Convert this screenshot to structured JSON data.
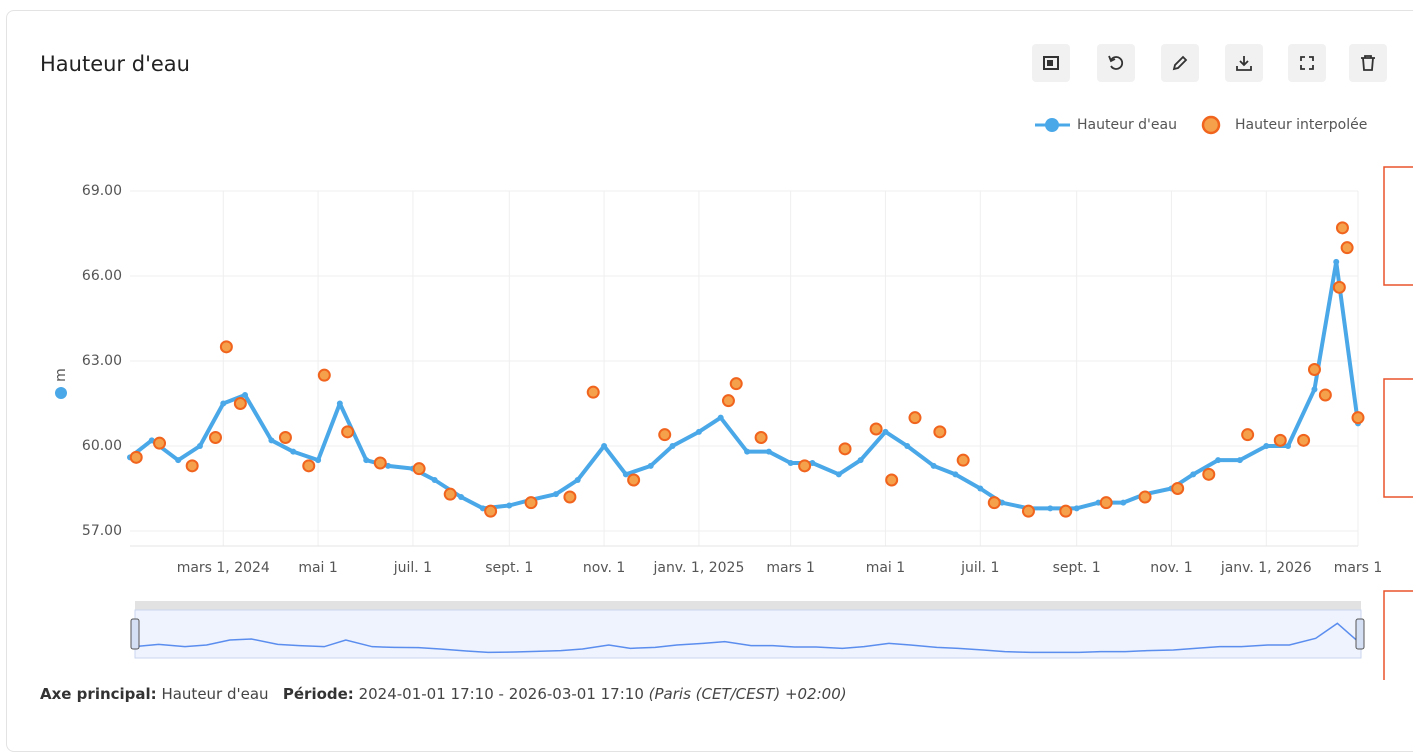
{
  "chart_data": {
    "type": "line",
    "title": "Hauteur d'eau",
    "ylabel": "m",
    "x": [
      "2024-01-01",
      "2024-01-15",
      "2024-02-01",
      "2024-02-15",
      "2024-03-01",
      "2024-03-15",
      "2024-04-01",
      "2024-04-15",
      "2024-05-01",
      "2024-05-15",
      "2024-06-01",
      "2024-06-15",
      "2024-07-01",
      "2024-07-15",
      "2024-08-01",
      "2024-08-15",
      "2024-09-01",
      "2024-09-15",
      "2024-10-01",
      "2024-10-15",
      "2024-11-01",
      "2024-11-15",
      "2024-12-01",
      "2024-12-15",
      "2025-01-01",
      "2025-01-15",
      "2025-02-01",
      "2025-02-15",
      "2025-03-01",
      "2025-03-15",
      "2025-04-01",
      "2025-04-15",
      "2025-05-01",
      "2025-05-15",
      "2025-06-01",
      "2025-06-15",
      "2025-07-01",
      "2025-07-15",
      "2025-08-01",
      "2025-08-15",
      "2025-09-01",
      "2025-09-15",
      "2025-10-01",
      "2025-10-15",
      "2025-11-01",
      "2025-11-15",
      "2025-12-01",
      "2025-12-15",
      "2026-01-01",
      "2026-01-15",
      "2026-02-01",
      "2026-02-15",
      "2026-03-01"
    ],
    "series": [
      {
        "name": "Hauteur d'eau",
        "color": "#4aa8e8",
        "values": [
          59.6,
          60.2,
          59.5,
          60.0,
          61.5,
          61.8,
          60.2,
          59.8,
          59.5,
          61.5,
          59.5,
          59.3,
          59.2,
          58.8,
          58.2,
          57.8,
          57.9,
          58.1,
          58.3,
          58.8,
          60.0,
          59.0,
          59.3,
          60.0,
          60.5,
          61.0,
          59.8,
          59.8,
          59.4,
          59.4,
          59.0,
          59.5,
          60.5,
          60.0,
          59.3,
          59.0,
          58.5,
          58.0,
          57.8,
          57.8,
          57.8,
          58.0,
          58.0,
          58.3,
          58.5,
          59.0,
          59.5,
          59.5,
          60.0,
          60.0,
          62.0,
          66.5,
          60.8
        ]
      },
      {
        "name": "Hauteur interpolée",
        "color": "#f0641e",
        "x": [
          "2024-01-05",
          "2024-01-20",
          "2024-02-10",
          "2024-02-25",
          "2024-03-03",
          "2024-03-12",
          "2024-04-10",
          "2024-04-25",
          "2024-05-05",
          "2024-05-20",
          "2024-06-10",
          "2024-07-05",
          "2024-07-25",
          "2024-08-20",
          "2024-09-15",
          "2024-10-10",
          "2024-10-25",
          "2024-11-20",
          "2024-12-10",
          "2025-01-20",
          "2025-01-25",
          "2025-02-10",
          "2025-03-10",
          "2025-04-05",
          "2025-04-25",
          "2025-05-05",
          "2025-05-20",
          "2025-06-05",
          "2025-06-20",
          "2025-07-10",
          "2025-08-01",
          "2025-08-25",
          "2025-09-20",
          "2025-10-15",
          "2025-11-05",
          "2025-11-25",
          "2025-12-20",
          "2026-01-10",
          "2026-01-25",
          "2026-02-01",
          "2026-02-08",
          "2026-02-17",
          "2026-02-19",
          "2026-02-22",
          "2026-03-01"
        ],
        "values": [
          59.6,
          60.1,
          59.3,
          60.3,
          63.5,
          61.5,
          60.3,
          59.3,
          62.5,
          60.5,
          59.4,
          59.2,
          58.3,
          57.7,
          58.0,
          58.2,
          61.9,
          58.8,
          60.4,
          61.6,
          62.2,
          60.3,
          59.3,
          59.9,
          60.6,
          58.8,
          61.0,
          60.5,
          59.5,
          58.0,
          57.7,
          57.7,
          58.0,
          58.2,
          58.5,
          59.0,
          60.4,
          60.2,
          60.2,
          62.7,
          61.8,
          65.6,
          67.7,
          67.0,
          61.0
        ]
      }
    ],
    "xlim": [
      "2024-01-01",
      "2026-03-01"
    ],
    "xticks": [
      {
        "value": "2024-03-01",
        "label": "mars 1, 2024"
      },
      {
        "value": "2024-05-01",
        "label": "mai 1"
      },
      {
        "value": "2024-07-01",
        "label": "juil. 1"
      },
      {
        "value": "2024-09-01",
        "label": "sept. 1"
      },
      {
        "value": "2024-11-01",
        "label": "nov. 1"
      },
      {
        "value": "2025-01-01",
        "label": "janv. 1, 2025"
      },
      {
        "value": "2025-03-01",
        "label": "mars 1"
      },
      {
        "value": "2025-05-01",
        "label": "mai 1"
      },
      {
        "value": "2025-07-01",
        "label": "juil. 1"
      },
      {
        "value": "2025-09-01",
        "label": "sept. 1"
      },
      {
        "value": "2025-11-01",
        "label": "nov. 1"
      },
      {
        "value": "2026-01-01",
        "label": "janv. 1, 2026"
      },
      {
        "value": "2026-03-01",
        "label": "mars 1"
      }
    ],
    "ylim": [
      57,
      69
    ],
    "yticks": [
      {
        "value": 57,
        "label": "57.00"
      },
      {
        "value": 60,
        "label": "60.00"
      },
      {
        "value": 63,
        "label": "63.00"
      },
      {
        "value": 66,
        "label": "66.00"
      },
      {
        "value": 69,
        "label": "69.00"
      }
    ],
    "grid": true,
    "legend": "top-right"
  },
  "footer": {
    "axis_label": "Axe principal:",
    "axis_value": "Hauteur d'eau",
    "period_label": "Période:",
    "period_value": "2024-01-01 17:10 - 2026-03-01 17:10",
    "timezone": "(Paris (CET/CEST) +02:00)"
  }
}
